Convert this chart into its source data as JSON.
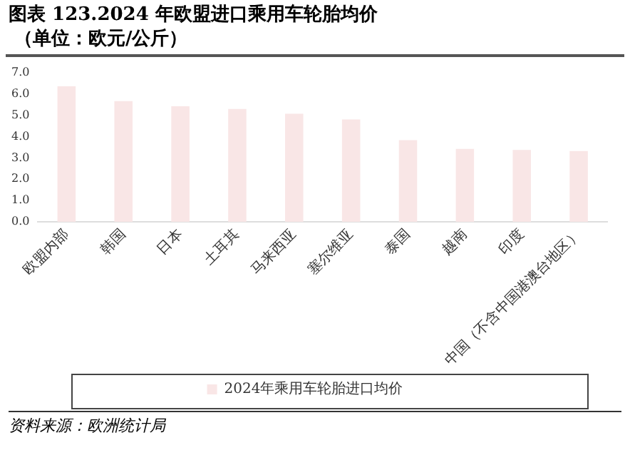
{
  "chart_data": {
    "type": "bar",
    "title": "图表 123.2024 年欧盟进口乘用车轮胎均价",
    "subtitle": "（单位：欧元/公斤）",
    "categories": [
      "欧盟内部",
      "韩国",
      "日本",
      "土耳其",
      "马来西亚",
      "塞尔维亚",
      "泰国",
      "越南",
      "印度",
      "中国（不含中国港澳台地区）"
    ],
    "series": [
      {
        "name": "2024年乘用车轮胎进口均价",
        "color": "#f9e6e6",
        "values": [
          6.35,
          5.66,
          5.42,
          5.29,
          5.07,
          4.8,
          3.83,
          3.42,
          3.37,
          3.32
        ]
      }
    ],
    "ylim": [
      0,
      7
    ],
    "yticks": [
      {
        "value": 0,
        "label": "0.0"
      },
      {
        "value": 1,
        "label": "1.0"
      },
      {
        "value": 2,
        "label": "2.0"
      },
      {
        "value": 3,
        "label": "3.0"
      },
      {
        "value": 4,
        "label": "4.0"
      },
      {
        "value": 5,
        "label": "5.0"
      },
      {
        "value": 6,
        "label": "6.0"
      },
      {
        "value": 7,
        "label": "7.0"
      }
    ],
    "grid": false,
    "legend": "bottom",
    "annotations": [
      "资料来源：欧洲统计局"
    ]
  }
}
